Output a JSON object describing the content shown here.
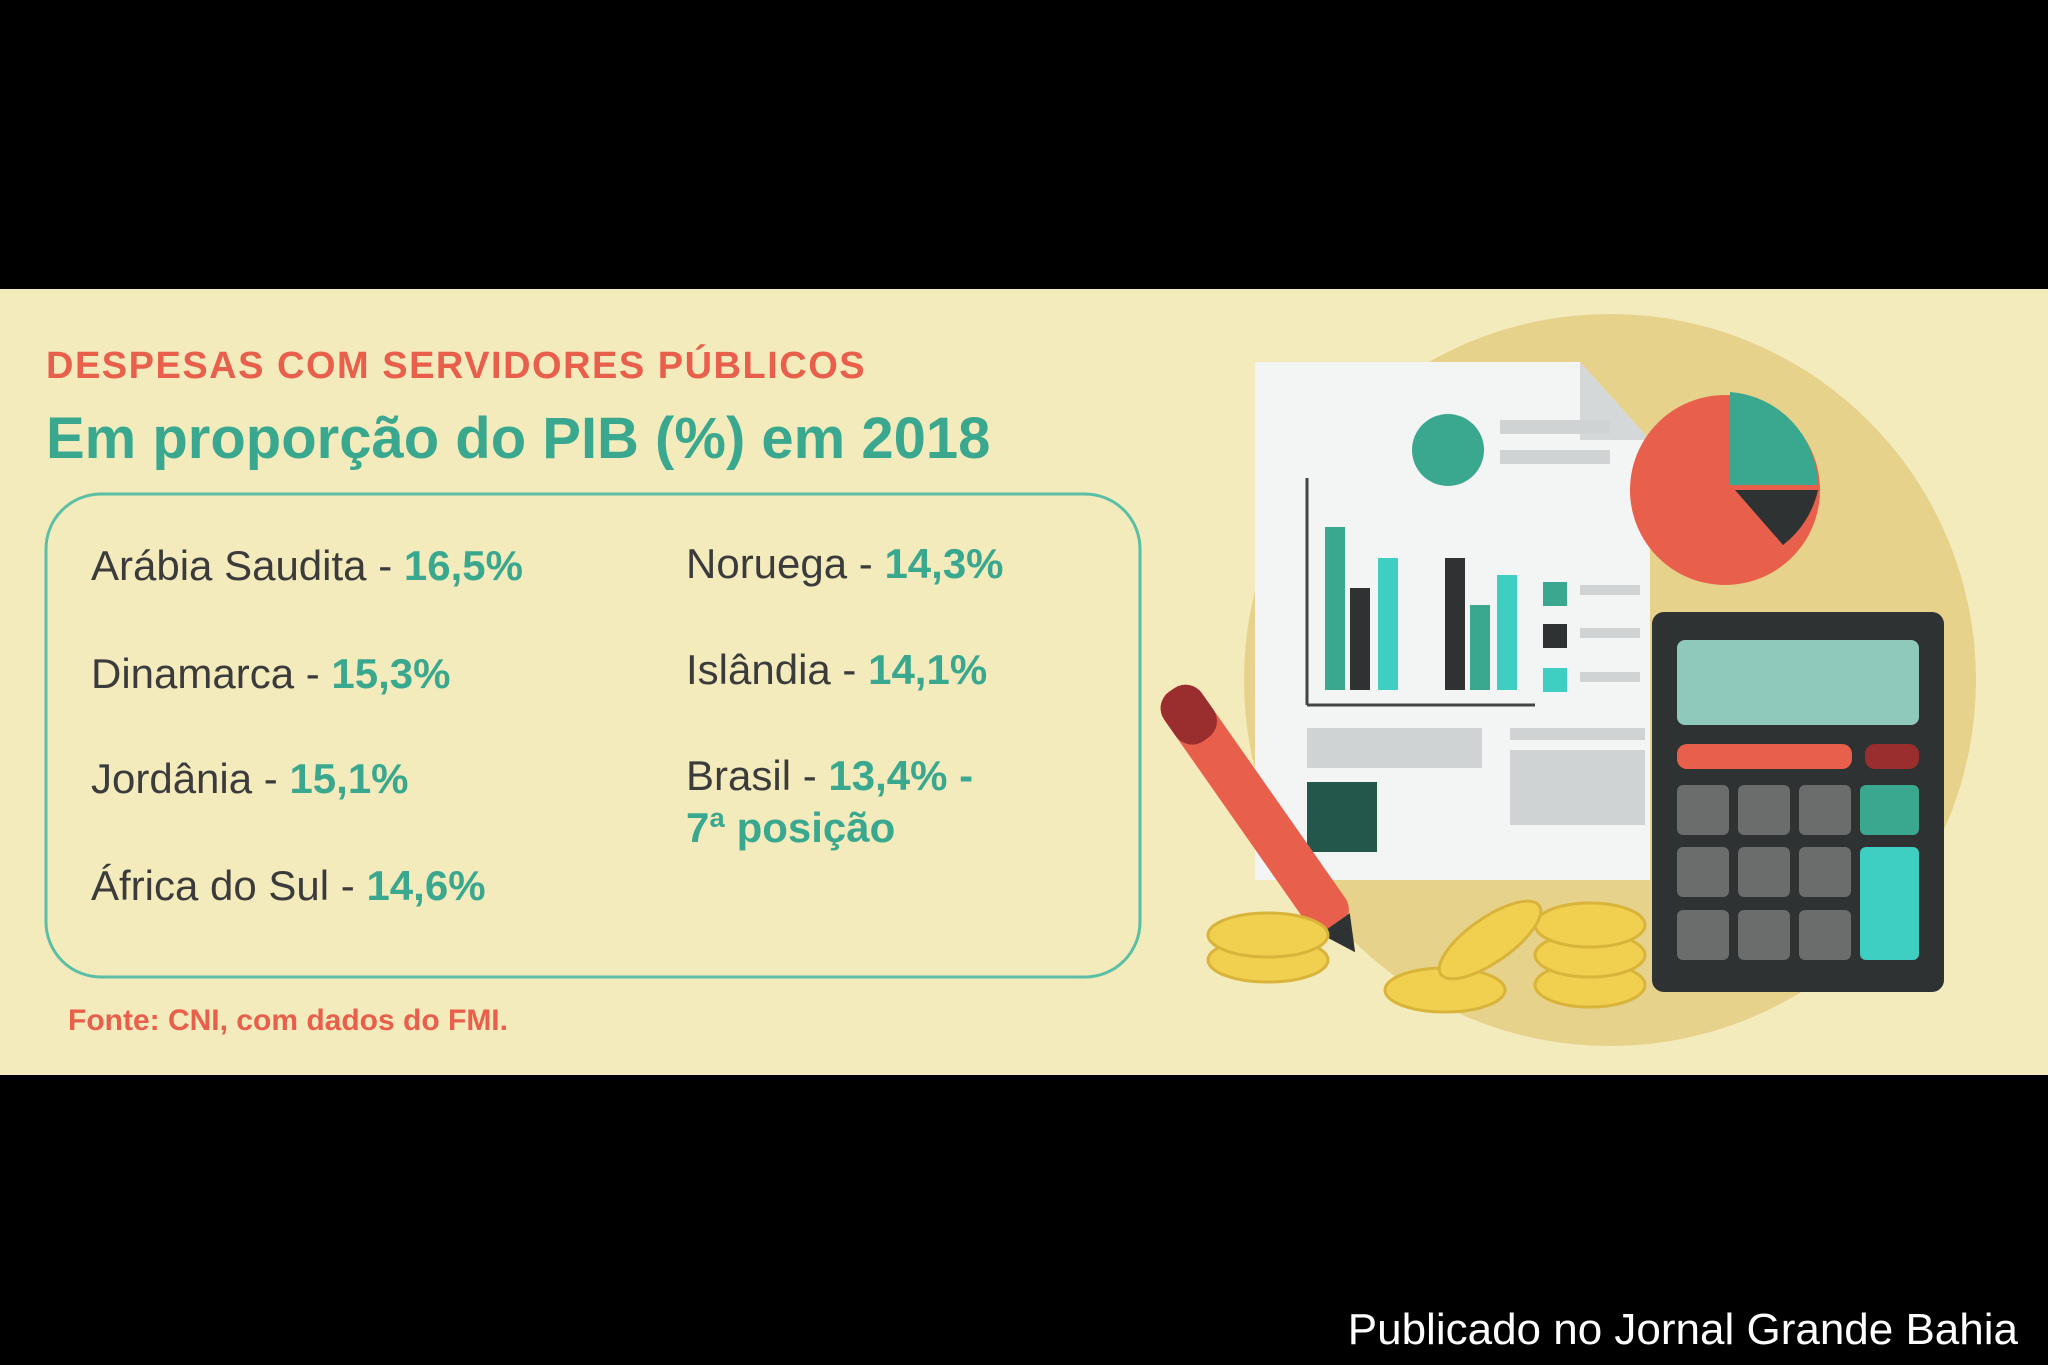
{
  "header": {
    "kicker": "DESPESAS COM SERVIDORES PÚBLICOS",
    "title": "Em proporção do PIB (%) em 2018"
  },
  "items": [
    {
      "name": "Arábia Saudita -",
      "value": "16,5%"
    },
    {
      "name": "Dinamarca -",
      "value": "15,3%"
    },
    {
      "name": "Jordânia -",
      "value": "15,1%"
    },
    {
      "name": "África do Sul -",
      "value": "14,6%"
    },
    {
      "name": "Noruega -",
      "value": "14,3%"
    },
    {
      "name": "Islândia -",
      "value": "14,1%"
    },
    {
      "name": "Brasil -",
      "value": "13,4% -",
      "note": "7ª posição"
    }
  ],
  "source": "Fonte: CNI, com dados do FMI.",
  "watermark": "Publicado no Jornal Grande Bahia"
}
